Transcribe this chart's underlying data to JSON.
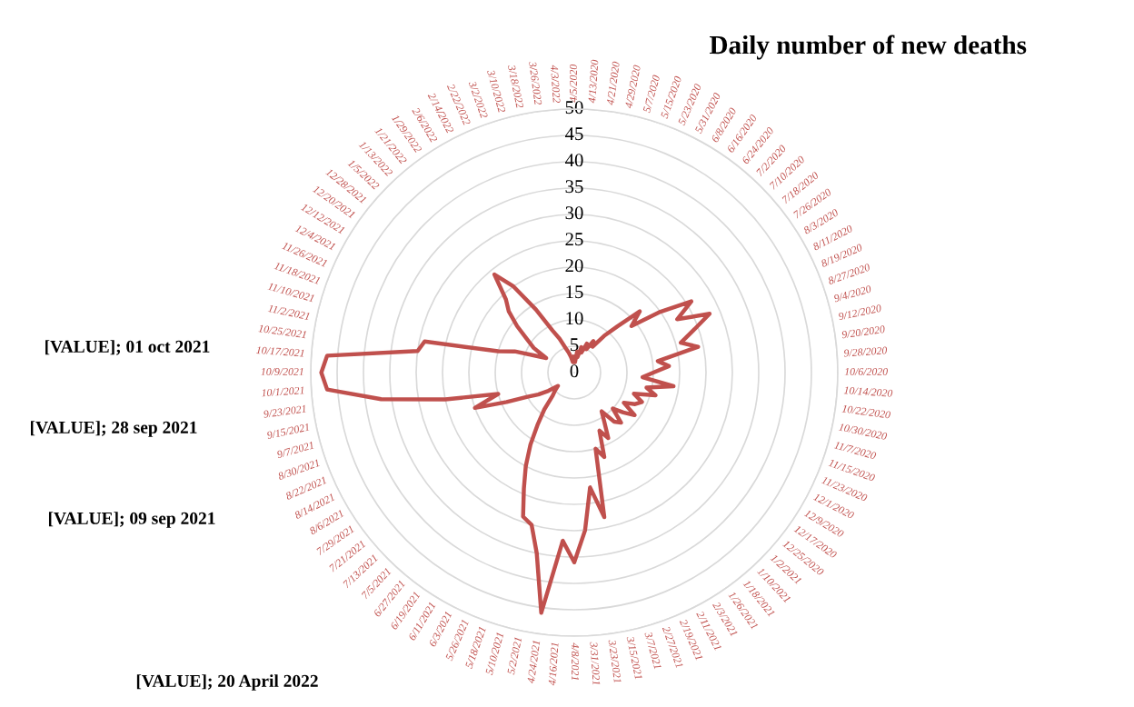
{
  "chart_data": {
    "type": "radar",
    "title": "Daily number of new deaths",
    "categories": [
      "4/5/2020",
      "4/13/2020",
      "4/21/2020",
      "4/29/2020",
      "5/7/2020",
      "5/15/2020",
      "5/23/2020",
      "5/31/2020",
      "6/8/2020",
      "6/16/2020",
      "6/24/2020",
      "7/2/2020",
      "7/10/2020",
      "7/18/2020",
      "7/26/2020",
      "8/3/2020",
      "8/11/2020",
      "8/19/2020",
      "8/27/2020",
      "9/4/2020",
      "9/12/2020",
      "9/20/2020",
      "9/28/2020",
      "10/6/2020",
      "10/14/2020",
      "10/22/2020",
      "10/30/2020",
      "11/7/2020",
      "11/15/2020",
      "11/23/2020",
      "12/1/2020",
      "12/9/2020",
      "12/17/2020",
      "12/25/2020",
      "1/2/2021",
      "1/10/2021",
      "1/18/2021",
      "1/26/2021",
      "2/3/2021",
      "2/11/2021",
      "2/19/2021",
      "2/27/2021",
      "3/7/2021",
      "3/15/2021",
      "3/23/2021",
      "3/31/2021",
      "4/8/2021",
      "4/16/2021",
      "4/24/2021",
      "5/2/2021",
      "5/10/2021",
      "5/18/2021",
      "5/26/2021",
      "6/3/2021",
      "6/11/2021",
      "6/19/2021",
      "6/27/2021",
      "7/5/2021",
      "7/13/2021",
      "7/21/2021",
      "7/29/2021",
      "8/6/2021",
      "8/14/2021",
      "8/22/2021",
      "8/30/2021",
      "9/7/2021",
      "9/15/2021",
      "9/23/2021",
      "10/1/2021",
      "10/9/2021",
      "10/17/2021",
      "10/25/2021",
      "11/2/2021",
      "11/10/2021",
      "11/18/2021",
      "11/26/2021",
      "12/4/2021",
      "12/12/2021",
      "12/20/2021",
      "12/28/2021",
      "1/5/2022",
      "1/13/2022",
      "1/21/2022",
      "1/29/2022",
      "2/6/2022",
      "2/14/2022",
      "2/22/2022",
      "3/2/2022",
      "3/10/2022",
      "3/18/2022",
      "3/26/2022",
      "4/3/2022"
    ],
    "series": [
      {
        "color": "#c0504d",
        "values": [
          3,
          2,
          4,
          3,
          5,
          4,
          6,
          5,
          7,
          6,
          9,
          12,
          17,
          14,
          20,
          26,
          22,
          28,
          24,
          21,
          24,
          16,
          18,
          15,
          13,
          19,
          14,
          16,
          12,
          14,
          13,
          11,
          14,
          12,
          10,
          13,
          12,
          9,
          11,
          14,
          12,
          17,
          15,
          28,
          22,
          30,
          36,
          32,
          46,
          35,
          30,
          29,
          24,
          20,
          16,
          12,
          9,
          6,
          5,
          4,
          6,
          8,
          10,
          14,
          20,
          15,
          25,
          37,
          47,
          48,
          47,
          30,
          29,
          15,
          12,
          8,
          6,
          9,
          11,
          14,
          17,
          19,
          24,
          20,
          14,
          9,
          7,
          5,
          4,
          3,
          2,
          2
        ]
      }
    ],
    "ylim": [
      0,
      50
    ],
    "yticks": [
      0,
      5,
      10,
      15,
      20,
      25,
      30,
      35,
      40,
      45,
      50
    ],
    "grid": "y",
    "line_style": "solid",
    "annotations": [
      "[VALUE]; 01 oct 2021",
      "[VALUE]; 28 sep 2021",
      "[VALUE]; 09 sep 2021",
      "[VALUE]; 20 April 2022"
    ]
  }
}
